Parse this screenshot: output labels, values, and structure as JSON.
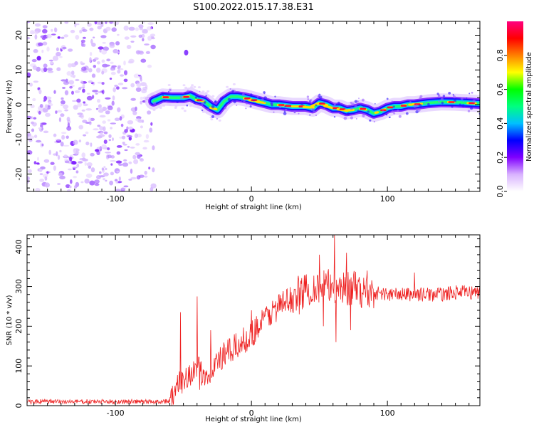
{
  "title": "S100.2022.015.17.38.E31",
  "chart_data": [
    {
      "type": "heatmap",
      "name": "spectrogram",
      "xlabel": "Height of straight line (km)",
      "ylabel": "Frequency (Hz)",
      "xlim": [
        -165,
        168
      ],
      "ylim": [
        -25,
        24
      ],
      "xticks": [
        -100,
        0,
        100
      ],
      "yticks": [
        -20,
        -10,
        0,
        10,
        20
      ],
      "noise_region_x": [
        -165,
        -72
      ],
      "ridge": {
        "x": [
          -72,
          -65,
          -58,
          -50,
          -45,
          -40,
          -35,
          -30,
          -25,
          -20,
          -15,
          -10,
          -5,
          0,
          5,
          10,
          15,
          20,
          30,
          40,
          45,
          50,
          55,
          60,
          65,
          70,
          75,
          80,
          85,
          90,
          95,
          100,
          105,
          110,
          115,
          120,
          130,
          140,
          150,
          160,
          168
        ],
        "y": [
          1.0,
          2.2,
          2.0,
          2.0,
          2.5,
          1.5,
          1.0,
          -0.5,
          -1.5,
          1.0,
          2.3,
          2.3,
          2.0,
          1.5,
          1.0,
          0.5,
          0.0,
          0.0,
          -0.5,
          -0.5,
          -1.0,
          0.5,
          0.0,
          -1.0,
          -1.0,
          -1.8,
          -1.5,
          -1.0,
          -1.5,
          -2.5,
          -2.0,
          -1.0,
          -0.5,
          -0.5,
          0.0,
          0.0,
          0.5,
          0.8,
          0.7,
          0.5,
          0.3
        ]
      },
      "outlier": {
        "x": -48,
        "y": 15
      }
    },
    {
      "type": "colorbar",
      "name": "colorbar",
      "label": "Normalized spectral amplitude",
      "range": [
        0,
        1
      ],
      "ticks": [
        "0.0",
        "0.2",
        "0.4",
        "0.6",
        "0.8"
      ],
      "colors": [
        "#ffffff",
        "#d9b3ff",
        "#8000ff",
        "#0000ff",
        "#00c0ff",
        "#00ff80",
        "#00ff00",
        "#ffff00",
        "#ff8000",
        "#ff0000",
        "#ff0080"
      ]
    },
    {
      "type": "line",
      "name": "snr",
      "xlabel": "Height of straight line (km)",
      "ylabel": "SNR (10 * v/v)",
      "xlim": [
        -165,
        168
      ],
      "ylim": [
        0,
        430
      ],
      "xticks": [
        -100,
        0,
        100
      ],
      "yticks": [
        0,
        100,
        200,
        300,
        400
      ],
      "color": "#ee2222",
      "trend": {
        "x": [
          -165,
          -70,
          -60,
          -55,
          -50,
          -45,
          -40,
          -35,
          -30,
          -25,
          -20,
          -15,
          -10,
          -5,
          0,
          10,
          20,
          30,
          35,
          40,
          45,
          50,
          55,
          60,
          65,
          70,
          75,
          80,
          85,
          90,
          100,
          110,
          120,
          130,
          140,
          150,
          160,
          168
        ],
        "y": [
          10,
          10,
          12,
          40,
          70,
          80,
          90,
          80,
          90,
          110,
          125,
          140,
          150,
          165,
          180,
          220,
          250,
          270,
          285,
          290,
          300,
          300,
          300,
          300,
          300,
          295,
          295,
          290,
          285,
          285,
          280,
          280,
          280,
          280,
          280,
          285,
          285,
          285
        ]
      },
      "spikes": [
        {
          "x": -52,
          "y": 235
        },
        {
          "x": -46,
          "y": 60
        },
        {
          "x": -40,
          "y": 275
        },
        {
          "x": -38,
          "y": 40
        },
        {
          "x": -30,
          "y": 190
        },
        {
          "x": 0,
          "y": 240
        },
        {
          "x": 35,
          "y": 230
        },
        {
          "x": 50,
          "y": 380
        },
        {
          "x": 53,
          "y": 200
        },
        {
          "x": 58,
          "y": 330
        },
        {
          "x": 61,
          "y": 430
        },
        {
          "x": 62,
          "y": 160
        },
        {
          "x": 70,
          "y": 385
        },
        {
          "x": 73,
          "y": 190
        },
        {
          "x": 85,
          "y": 340
        },
        {
          "x": 120,
          "y": 335
        }
      ],
      "noise_amplitude": 15
    }
  ]
}
